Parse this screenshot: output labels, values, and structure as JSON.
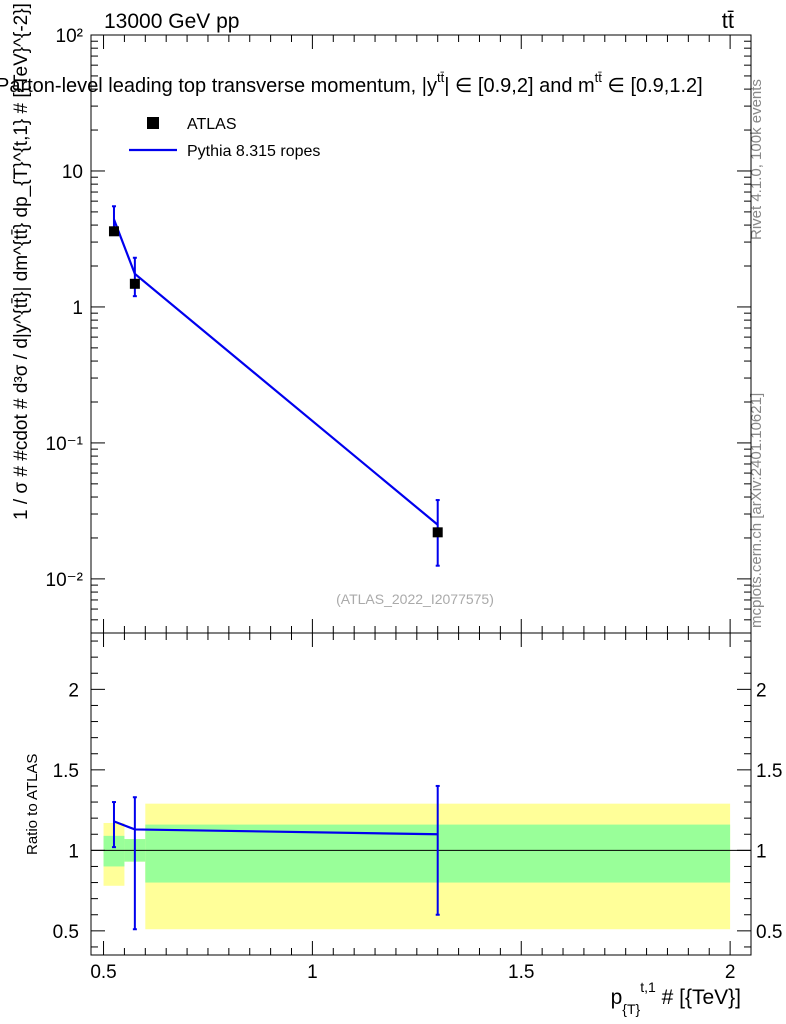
{
  "header": {
    "energy_label": "13000 GeV pp",
    "process_label": "tt̄",
    "title": "Parton-level leading top transverse momentum, |y",
    "title_sup": "tt̄",
    "title_mid": "| ∈ [0.9,2] and m",
    "title_sup2": "tt̄",
    "title_end": " ∈ [0.9,1.2]"
  },
  "side": {
    "rivet_label": "Rivet 4.1.0,  100k events",
    "mcplots_label": "mcplots.cern.ch [arXiv:2401.10621]"
  },
  "watermark": "(ATLAS_2022_I2077575)",
  "legend": {
    "data_label": "ATLAS",
    "mc_label": "Pythia 8.315 ropes"
  },
  "colors": {
    "data": "#000000",
    "mc": "#0000ee",
    "band_inner": "#99ff99",
    "band_outer": "#ffff99"
  },
  "chart_data": {
    "type": "line",
    "xlim": [
      0.47,
      2.05
    ],
    "top_panel": {
      "ylabel": "1 / σ # #cdot # d³σ / d|y^{tt̄}| dm^{tt̄} dp_{T}^{t,1} # [{TeV}^{-2}]",
      "yscale": "log",
      "ylim": [
        0.004,
        100
      ],
      "yticks": [
        {
          "value": 100,
          "label": "10²"
        },
        {
          "value": 10,
          "label": "10"
        },
        {
          "value": 1,
          "label": "1"
        },
        {
          "value": 0.1,
          "label": "10⁻¹"
        },
        {
          "value": 0.01,
          "label": "10⁻²"
        }
      ],
      "data": [
        {
          "x": 0.525,
          "y": 3.6
        },
        {
          "x": 0.575,
          "y": 1.48
        },
        {
          "x": 1.3,
          "y": 0.022
        }
      ],
      "mc": [
        {
          "x": 0.525,
          "y": 4.4,
          "ylo": 3.5,
          "yhi": 5.5
        },
        {
          "x": 0.575,
          "y": 1.75,
          "ylo": 1.2,
          "yhi": 2.3
        },
        {
          "x": 1.3,
          "y": 0.025,
          "ylo": 0.0125,
          "yhi": 0.038
        }
      ]
    },
    "bottom_panel": {
      "ylabel": "Ratio to ATLAS",
      "ylim": [
        0.35,
        2.35
      ],
      "yticks": [
        {
          "value": 2,
          "label": "2"
        },
        {
          "value": 1.5,
          "label": "1.5"
        },
        {
          "value": 1,
          "label": "1"
        },
        {
          "value": 0.5,
          "label": "0.5"
        }
      ],
      "outer_band": [
        {
          "x0": 0.5,
          "x1": 0.55,
          "lo": 0.78,
          "hi": 1.17
        },
        {
          "x0": 0.55,
          "x1": 0.6,
          "lo": 0.93,
          "hi": 1.07
        },
        {
          "x0": 0.6,
          "x1": 2.0,
          "lo": 0.51,
          "hi": 1.29
        }
      ],
      "inner_band": [
        {
          "x0": 0.5,
          "x1": 0.55,
          "lo": 0.9,
          "hi": 1.09
        },
        {
          "x0": 0.55,
          "x1": 0.6,
          "lo": 0.93,
          "hi": 1.07
        },
        {
          "x0": 0.6,
          "x1": 2.0,
          "lo": 0.8,
          "hi": 1.16
        }
      ],
      "mc": [
        {
          "x": 0.525,
          "y": 1.18,
          "ylo": 1.02,
          "yhi": 1.3
        },
        {
          "x": 0.575,
          "y": 1.13,
          "ylo": 0.51,
          "yhi": 1.33
        },
        {
          "x": 1.3,
          "y": 1.1,
          "ylo": 0.6,
          "yhi": 1.4
        }
      ]
    },
    "xaxis": {
      "label_main": "p",
      "label_sub": "{T}",
      "label_sup": "t,1",
      "label_unit": " # [{TeV}]",
      "ticks": [
        {
          "value": 0.5,
          "label": "0.5"
        },
        {
          "value": 1,
          "label": "1"
        },
        {
          "value": 1.5,
          "label": "1.5"
        },
        {
          "value": 2,
          "label": "2"
        }
      ]
    }
  }
}
